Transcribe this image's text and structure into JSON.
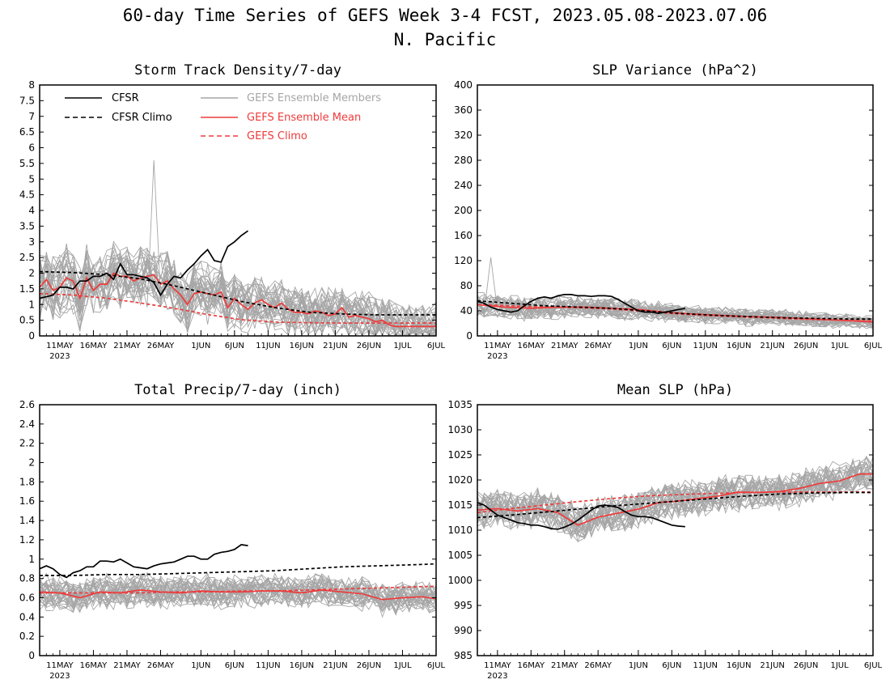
{
  "figure": {
    "title_line1": "60-day Time Series of GEFS Week 3-4 FCST, 2023.05.08-2023.07.06",
    "title_line2": "N. Pacific"
  },
  "colors": {
    "cfsr": "#000000",
    "gefs_mean": "#ee3b3b",
    "members": "#a6a6a6"
  },
  "legend": {
    "cfsr": "CFSR",
    "cfsr_climo": "CFSR Climo",
    "members": "GEFS Ensemble Members",
    "mean": "GEFS Ensemble Mean",
    "gefs_climo": "GEFS Climo"
  },
  "x_axis": {
    "ticks": [
      "11MAY",
      "16MAY",
      "21MAY",
      "26MAY",
      "1JUN",
      "6JUN",
      "11JUN",
      "16JUN",
      "21JUN",
      "26JUN",
      "1JUL",
      "6JUL"
    ],
    "tick_days": [
      3,
      8,
      13,
      18,
      24,
      29,
      34,
      39,
      44,
      49,
      54,
      59
    ],
    "year_label": "2023",
    "range_days": [
      0,
      59
    ]
  },
  "chart_data": [
    {
      "type": "line",
      "title": "Storm Track Density/7-day",
      "ylim": [
        0,
        8
      ],
      "yticks": [
        "0",
        "0.5",
        "1",
        "1.5",
        "2",
        "2.5",
        "3",
        "3.5",
        "4",
        "4.5",
        "5",
        "5.5",
        "6",
        "6.5",
        "7",
        "7.5",
        "8"
      ],
      "ensemble_members": {
        "count": 30,
        "spread_start": 0.9,
        "spread_end": 0.55,
        "peak": 5.6
      },
      "series": [
        {
          "name": "CFSR",
          "style": "solid-black",
          "x": [
            0,
            1,
            2,
            3,
            4,
            5,
            6,
            7,
            8,
            9,
            10,
            11,
            12,
            13,
            14,
            15,
            16,
            17,
            18,
            19,
            20,
            21,
            22,
            23,
            24,
            25,
            26,
            27,
            28,
            29,
            30,
            31
          ],
          "y": [
            1.2,
            1.25,
            1.3,
            1.55,
            1.55,
            1.5,
            1.75,
            1.75,
            1.9,
            1.9,
            2.0,
            1.8,
            2.3,
            1.95,
            1.95,
            1.9,
            1.85,
            1.7,
            1.3,
            1.65,
            1.9,
            1.85,
            2.1,
            2.3,
            2.55,
            2.75,
            2.4,
            2.35,
            2.85,
            3.0,
            3.2,
            3.35
          ]
        },
        {
          "name": "CFSR Climo",
          "style": "dashed-black",
          "x": [
            0,
            5,
            10,
            15,
            20,
            25,
            30,
            35,
            40,
            45,
            50,
            55,
            59
          ],
          "y": [
            2.05,
            2.02,
            1.95,
            1.82,
            1.6,
            1.35,
            1.1,
            0.9,
            0.76,
            0.7,
            0.67,
            0.67,
            0.67
          ]
        },
        {
          "name": "GEFS Ensemble Mean",
          "style": "solid-red",
          "x": [
            0,
            1,
            2,
            3,
            4,
            5,
            6,
            7,
            8,
            9,
            10,
            11,
            12,
            13,
            14,
            15,
            16,
            17,
            18,
            19,
            20,
            21,
            22,
            23,
            24,
            25,
            26,
            27,
            28,
            29,
            30,
            31,
            32,
            33,
            34,
            35,
            36,
            37,
            38,
            39,
            40,
            41,
            42,
            43,
            44,
            45,
            46,
            47,
            48,
            49,
            50,
            51,
            52,
            53,
            54,
            55,
            56,
            57,
            58,
            59
          ],
          "y": [
            1.55,
            1.8,
            1.45,
            1.55,
            1.85,
            1.75,
            1.2,
            1.85,
            1.45,
            1.65,
            1.65,
            2.0,
            1.9,
            1.9,
            1.75,
            1.85,
            1.9,
            1.95,
            1.65,
            1.75,
            1.5,
            1.3,
            1.0,
            1.35,
            1.4,
            1.35,
            1.3,
            1.4,
            0.9,
            1.2,
            1.0,
            0.85,
            1.05,
            1.15,
            1.0,
            0.9,
            1.05,
            0.85,
            0.75,
            0.75,
            0.7,
            0.8,
            0.75,
            0.65,
            0.7,
            0.9,
            0.6,
            0.65,
            0.6,
            0.55,
            0.45,
            0.5,
            0.35,
            0.3,
            0.3,
            0.3,
            0.3,
            0.3,
            0.3,
            0.3
          ]
        },
        {
          "name": "GEFS Climo",
          "style": "dashed-red",
          "x": [
            0,
            5,
            10,
            15,
            20,
            25,
            30,
            35,
            40,
            45,
            50,
            55,
            59
          ],
          "y": [
            1.35,
            1.3,
            1.2,
            1.05,
            0.88,
            0.68,
            0.52,
            0.44,
            0.42,
            0.41,
            0.41,
            0.41,
            0.41
          ]
        }
      ]
    },
    {
      "type": "line",
      "title": "SLP Variance (hPa^2)",
      "ylim": [
        0,
        400
      ],
      "yticks": [
        "0",
        "40",
        "80",
        "120",
        "160",
        "200",
        "240",
        "280",
        "320",
        "360",
        "400"
      ],
      "ensemble_members": {
        "count": 30,
        "spread_start": 18,
        "spread_end": 7,
        "peak": 125
      },
      "series": [
        {
          "name": "CFSR",
          "style": "solid-black",
          "x": [
            0,
            1,
            2,
            3,
            4,
            5,
            6,
            7,
            8,
            9,
            10,
            11,
            12,
            13,
            14,
            15,
            16,
            17,
            18,
            19,
            20,
            21,
            22,
            23,
            24,
            25,
            26,
            27,
            28,
            29,
            30,
            31
          ],
          "y": [
            55,
            52,
            46,
            42,
            40,
            38,
            40,
            48,
            55,
            60,
            62,
            60,
            64,
            66,
            66,
            64,
            64,
            63,
            64,
            64,
            63,
            58,
            52,
            46,
            40,
            38,
            38,
            36,
            38,
            40,
            42,
            44
          ]
        },
        {
          "name": "CFSR Climo",
          "style": "dashed-black",
          "x": [
            0,
            5,
            10,
            15,
            20,
            25,
            30,
            35,
            40,
            45,
            50,
            55,
            59
          ],
          "y": [
            56,
            52,
            48,
            46,
            44,
            40,
            36,
            33,
            31,
            29,
            28,
            27,
            27
          ]
        },
        {
          "name": "GEFS Ensemble Mean",
          "style": "solid-red",
          "x": [
            0,
            4,
            8,
            12,
            16,
            20,
            24,
            28,
            32,
            36,
            40,
            44,
            48,
            52,
            56,
            59
          ],
          "y": [
            50,
            46,
            44,
            46,
            46,
            44,
            42,
            38,
            35,
            33,
            31,
            30,
            28,
            26,
            24,
            22
          ]
        },
        {
          "name": "GEFS Climo",
          "style": "dashed-red",
          "x": [
            0,
            5,
            10,
            15,
            20,
            25,
            30,
            35,
            40,
            45,
            50,
            55,
            59
          ],
          "y": [
            50,
            48,
            46,
            45,
            43,
            39,
            35,
            32,
            30,
            28,
            26,
            25,
            24
          ]
        }
      ]
    },
    {
      "type": "line",
      "title": "Total Precip/7-day (inch)",
      "ylim": [
        0,
        2.6
      ],
      "yticks": [
        "0",
        "0.2",
        "0.4",
        "0.6",
        "0.8",
        "1",
        "1.2",
        "1.4",
        "1.6",
        "1.8",
        "2",
        "2.2",
        "2.4",
        "2.6"
      ],
      "ensemble_members": {
        "count": 30,
        "spread_start": 0.16,
        "spread_end": 0.13,
        "peak": 1.15
      },
      "series": [
        {
          "name": "CFSR",
          "style": "solid-black",
          "x": [
            0,
            1,
            2,
            3,
            4,
            5,
            6,
            7,
            8,
            9,
            10,
            11,
            12,
            13,
            14,
            15,
            16,
            17,
            18,
            19,
            20,
            21,
            22,
            23,
            24,
            25,
            26,
            27,
            28,
            29,
            30,
            31
          ],
          "y": [
            0.9,
            0.93,
            0.9,
            0.84,
            0.81,
            0.86,
            0.88,
            0.92,
            0.92,
            0.98,
            0.98,
            0.97,
            1.0,
            0.96,
            0.92,
            0.91,
            0.9,
            0.93,
            0.95,
            0.96,
            0.97,
            1.0,
            1.03,
            1.03,
            1.0,
            1.0,
            1.05,
            1.07,
            1.08,
            1.1,
            1.15,
            1.14
          ]
        },
        {
          "name": "CFSR Climo",
          "style": "dashed-black",
          "x": [
            0,
            5,
            10,
            15,
            20,
            25,
            30,
            35,
            40,
            45,
            50,
            55,
            59
          ],
          "y": [
            0.83,
            0.83,
            0.84,
            0.84,
            0.85,
            0.86,
            0.87,
            0.88,
            0.9,
            0.92,
            0.93,
            0.94,
            0.95
          ]
        },
        {
          "name": "GEFS Ensemble Mean",
          "style": "solid-red",
          "x": [
            0,
            3,
            6,
            9,
            12,
            15,
            18,
            21,
            24,
            27,
            30,
            33,
            36,
            39,
            42,
            45,
            48,
            51,
            54,
            57,
            59
          ],
          "y": [
            0.66,
            0.65,
            0.6,
            0.66,
            0.65,
            0.68,
            0.66,
            0.65,
            0.67,
            0.66,
            0.66,
            0.67,
            0.67,
            0.65,
            0.68,
            0.66,
            0.64,
            0.58,
            0.6,
            0.61,
            0.59
          ]
        },
        {
          "name": "GEFS Climo",
          "style": "dashed-red",
          "x": [
            0,
            5,
            10,
            15,
            20,
            25,
            30,
            35,
            40,
            45,
            50,
            55,
            59
          ],
          "y": [
            0.65,
            0.65,
            0.65,
            0.65,
            0.66,
            0.66,
            0.67,
            0.67,
            0.68,
            0.69,
            0.7,
            0.71,
            0.72
          ]
        }
      ]
    },
    {
      "type": "line",
      "title": "Mean SLP (hPa)",
      "ylim": [
        985,
        1035
      ],
      "yticks": [
        "985",
        "990",
        "995",
        "1000",
        "1005",
        "1010",
        "1015",
        "1020",
        "1025",
        "1030",
        "1035"
      ],
      "ensemble_members": {
        "count": 30,
        "spread_start": 3.5,
        "spread_end": 3.0,
        "peak": 1028
      },
      "series": [
        {
          "name": "CFSR",
          "style": "solid-black",
          "x": [
            0,
            1,
            2,
            3,
            4,
            5,
            6,
            7,
            8,
            9,
            10,
            11,
            12,
            13,
            14,
            15,
            16,
            17,
            18,
            19,
            20,
            21,
            22,
            23,
            24,
            25,
            26,
            27,
            28,
            29,
            30,
            31
          ],
          "y": [
            1015.5,
            1015,
            1014,
            1013,
            1012.5,
            1012,
            1011.5,
            1011.3,
            1011,
            1011,
            1010.7,
            1010.3,
            1010.2,
            1010.6,
            1011.2,
            1012,
            1013,
            1014,
            1014.8,
            1015,
            1014.8,
            1014.5,
            1013.7,
            1013,
            1012.7,
            1012.7,
            1012.5,
            1012,
            1011.5,
            1011,
            1010.8,
            1010.7
          ]
        },
        {
          "name": "CFSR Climo",
          "style": "dashed-black",
          "x": [
            0,
            5,
            10,
            15,
            20,
            25,
            30,
            35,
            40,
            45,
            50,
            55,
            59
          ],
          "y": [
            1012.5,
            1013,
            1013.6,
            1014.2,
            1014.8,
            1015.3,
            1015.8,
            1016.3,
            1016.8,
            1017.2,
            1017.4,
            1017.5,
            1017.5
          ]
        },
        {
          "name": "GEFS Ensemble Mean",
          "style": "solid-red",
          "x": [
            0,
            3,
            6,
            9,
            12,
            15,
            18,
            21,
            24,
            27,
            30,
            33,
            36,
            39,
            42,
            45,
            48,
            51,
            54,
            57,
            59
          ],
          "y": [
            1014,
            1014.3,
            1013.8,
            1014.3,
            1013.5,
            1011,
            1012.6,
            1013.4,
            1014.2,
            1015.5,
            1015.8,
            1016.3,
            1016.8,
            1017.6,
            1017.5,
            1017.7,
            1018.3,
            1019.3,
            1019.8,
            1021.2,
            1021.2
          ]
        },
        {
          "name": "GEFS Climo",
          "style": "dashed-red",
          "x": [
            0,
            5,
            10,
            15,
            20,
            25,
            30,
            35,
            40,
            45,
            50,
            55,
            59
          ],
          "y": [
            1013.5,
            1014.3,
            1015,
            1015.7,
            1016.3,
            1016.8,
            1017.1,
            1017.3,
            1017.5,
            1017.6,
            1017.6,
            1017.6,
            1017.6
          ]
        }
      ]
    }
  ]
}
